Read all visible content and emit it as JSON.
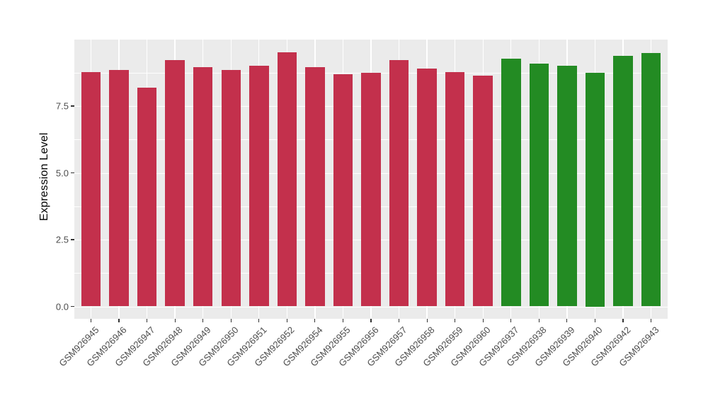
{
  "style": {
    "background": "#FFFFFF",
    "panel_background": "#EBEBEB",
    "grid_color": "#FFFFFF",
    "axis_text_color": "#4D4D4D",
    "axis_title_color": "#000000",
    "tick_mark_color": "#333333",
    "bar_color_left_group": "#C3304C",
    "bar_color_right_group": "#238B23"
  },
  "chart_data": {
    "type": "bar",
    "title": "",
    "xlabel": "",
    "ylabel": "Expression Level",
    "legend": "none",
    "grid": "white major and minor gridlines on grey panel",
    "ylim": [
      0,
      9.98
    ],
    "yticks": [
      0.0,
      2.5,
      5.0,
      7.5
    ],
    "ytick_labels": [
      "0.0",
      "2.5",
      "5.0",
      "7.5"
    ],
    "minor_yticks": [
      1.25,
      3.75,
      6.25,
      8.75
    ],
    "x_tick_rotation_deg": 45,
    "categories": [
      "GSM926945",
      "GSM926946",
      "GSM926947",
      "GSM926948",
      "GSM926949",
      "GSM926950",
      "GSM926951",
      "GSM926952",
      "GSM926954",
      "GSM926955",
      "GSM926956",
      "GSM926957",
      "GSM926958",
      "GSM926959",
      "GSM926960",
      "GSM926937",
      "GSM926938",
      "GSM926939",
      "GSM926940",
      "GSM926942",
      "GSM926943"
    ],
    "values": [
      8.76,
      8.84,
      8.2,
      9.23,
      8.95,
      8.84,
      9.0,
      9.5,
      8.95,
      8.68,
      8.74,
      9.23,
      8.9,
      8.78,
      8.65,
      9.27,
      9.09,
      9.0,
      8.75,
      9.37,
      9.48
    ],
    "colors": [
      "#C3304C",
      "#C3304C",
      "#C3304C",
      "#C3304C",
      "#C3304C",
      "#C3304C",
      "#C3304C",
      "#C3304C",
      "#C3304C",
      "#C3304C",
      "#C3304C",
      "#C3304C",
      "#C3304C",
      "#C3304C",
      "#C3304C",
      "#238B23",
      "#238B23",
      "#238B23",
      "#238B23",
      "#238B23",
      "#238B23"
    ]
  }
}
